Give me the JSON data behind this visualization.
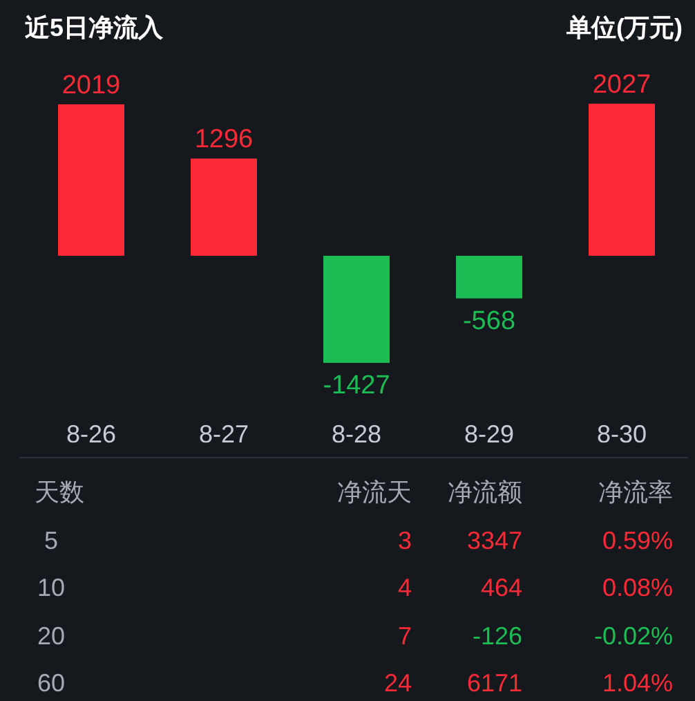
{
  "chart_data": [
    {
      "type": "bar",
      "title": "近5日净流入",
      "subtitle": "单位(万元)",
      "categories": [
        "8-26",
        "8-27",
        "8-28",
        "8-29",
        "8-30"
      ],
      "values": [
        2019,
        1296,
        -1427,
        -568,
        2027
      ],
      "colors": [
        "#fc2a37",
        "#fc2a37",
        "#1bbd54",
        "#1bbd54",
        "#fc2a37"
      ],
      "data_labels": true
    },
    {
      "type": "other",
      "categories": [
        "天数",
        "净流天",
        "净流额",
        "净流率"
      ],
      "y_categories": [
        "5",
        "10",
        "20",
        "60"
      ],
      "cell_labels": [
        [
          "3",
          "3347",
          "0.59%"
        ],
        [
          "4",
          "464",
          "0.08%"
        ],
        [
          "7",
          "-126",
          "-0.02%"
        ],
        [
          "24",
          "6171",
          "1.04%"
        ]
      ],
      "colors": [
        [
          "#fc2a37",
          "#fc2a37",
          "#fc2a37"
        ],
        [
          "#fc2a37",
          "#fc2a37",
          "#fc2a37"
        ],
        [
          "#fc2a37",
          "#1bbd54",
          "#1bbd54"
        ],
        [
          "#fc2a37",
          "#fc2a37",
          "#fc2a37"
        ]
      ]
    }
  ]
}
